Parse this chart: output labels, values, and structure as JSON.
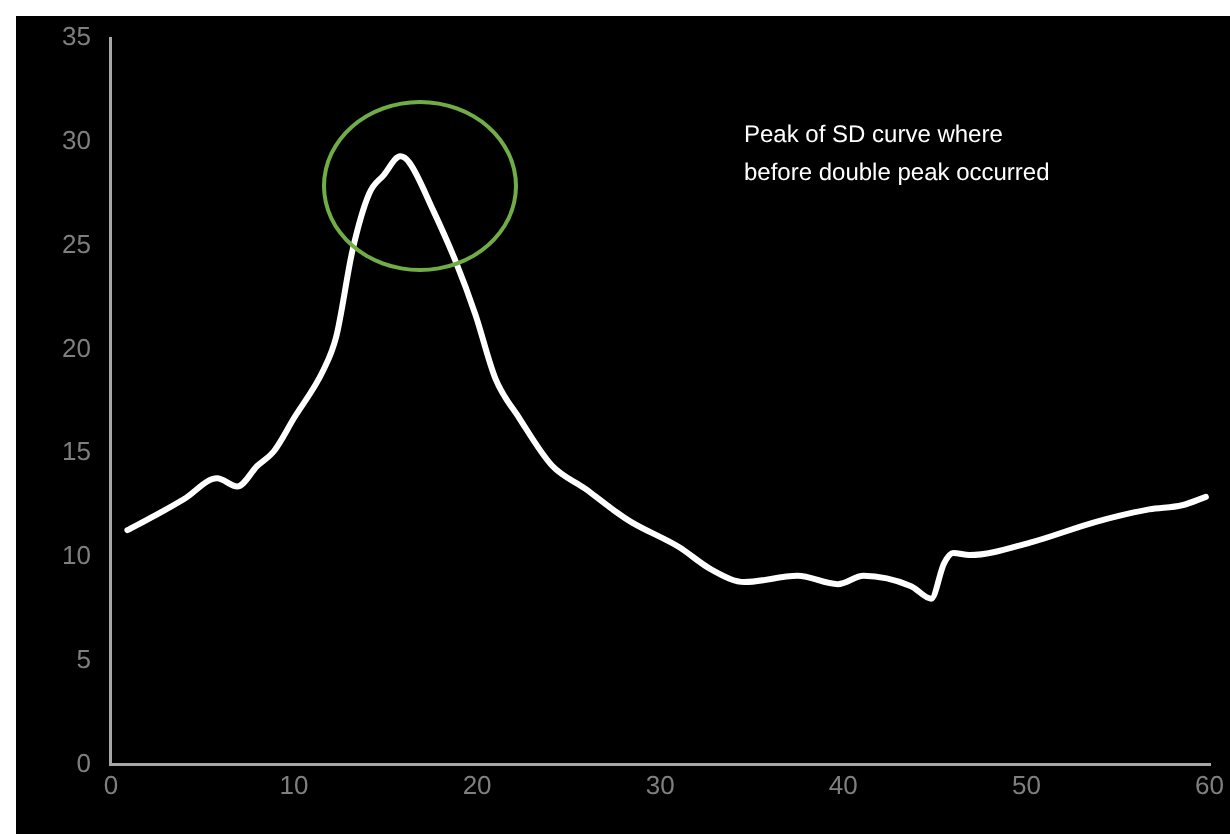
{
  "chart_data": {
    "type": "line",
    "x": [
      0.9,
      2.4,
      4.0,
      5.8,
      6.9,
      8.0,
      8.9,
      10.0,
      11.6,
      12.3,
      13.2,
      14.1,
      14.9,
      15.8,
      16.3,
      17.6,
      18.8,
      19.9,
      21.0,
      22.3,
      24.1,
      25.9,
      27.4,
      28.4,
      31.0,
      32.8,
      34.6,
      37.5,
      39.7,
      41.1,
      43.7,
      44.8,
      45.5,
      46.0,
      46.9,
      50.2,
      53.8,
      56.7,
      58.5,
      59.8
    ],
    "series": [
      {
        "color": "#ffffff",
        "values": [
          11.3,
          12.0,
          12.8,
          13.8,
          13.4,
          14.4,
          15.1,
          16.7,
          19.0,
          20.6,
          24.8,
          27.5,
          28.4,
          29.3,
          29.0,
          26.7,
          24.3,
          21.7,
          18.6,
          16.7,
          14.4,
          13.3,
          12.3,
          11.7,
          10.5,
          9.4,
          8.8,
          9.1,
          8.7,
          9.1,
          8.6,
          8.0,
          9.7,
          10.2,
          10.1,
          10.7,
          11.7,
          12.3,
          12.5,
          12.9
        ]
      }
    ],
    "xlim": [
      0,
      60
    ],
    "xticks": [
      0,
      10,
      20,
      30,
      40,
      50,
      60
    ],
    "ylim": [
      0,
      35
    ],
    "yticks": [
      0,
      5,
      10,
      15,
      20,
      25,
      30,
      35
    ],
    "grid": false,
    "legend": false,
    "marker": "none",
    "line_style": "solid",
    "annotations": [
      "Peak of SD curve where before double peak occurred"
    ]
  }
}
